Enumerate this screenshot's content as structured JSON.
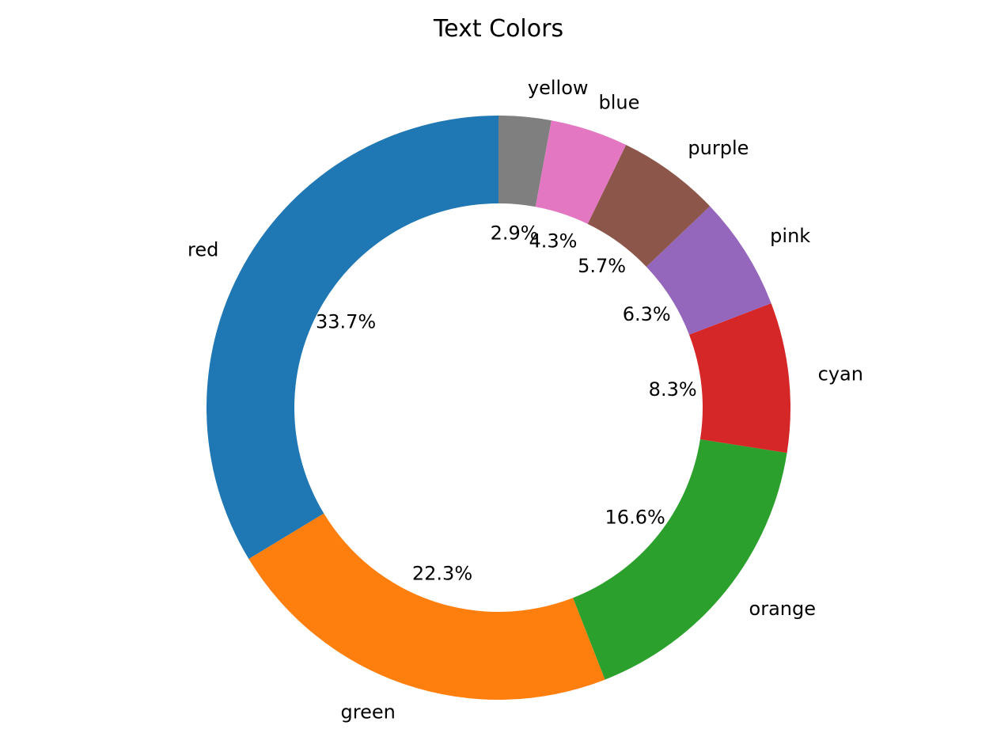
{
  "chart_data": {
    "type": "pie",
    "style": "donut",
    "title": "Text Colors",
    "start": "top, counterclockwise",
    "slices": [
      {
        "label": "red",
        "value": 33.7,
        "pct_label": "33.7%",
        "color": "#1f77b4"
      },
      {
        "label": "green",
        "value": 22.3,
        "pct_label": "22.3%",
        "color": "#ff7f0e"
      },
      {
        "label": "orange",
        "value": 16.6,
        "pct_label": "16.6%",
        "color": "#2ca02c"
      },
      {
        "label": "cyan",
        "value": 8.3,
        "pct_label": "8.3%",
        "color": "#d62728"
      },
      {
        "label": "pink",
        "value": 6.3,
        "pct_label": "6.3%",
        "color": "#9467bd"
      },
      {
        "label": "purple",
        "value": 5.7,
        "pct_label": "5.7%",
        "color": "#8c564b"
      },
      {
        "label": "blue",
        "value": 4.3,
        "pct_label": "4.3%",
        "color": "#e377c2"
      },
      {
        "label": "yellow",
        "value": 2.9,
        "pct_label": "2.9%",
        "color": "#7f7f7f"
      }
    ]
  }
}
